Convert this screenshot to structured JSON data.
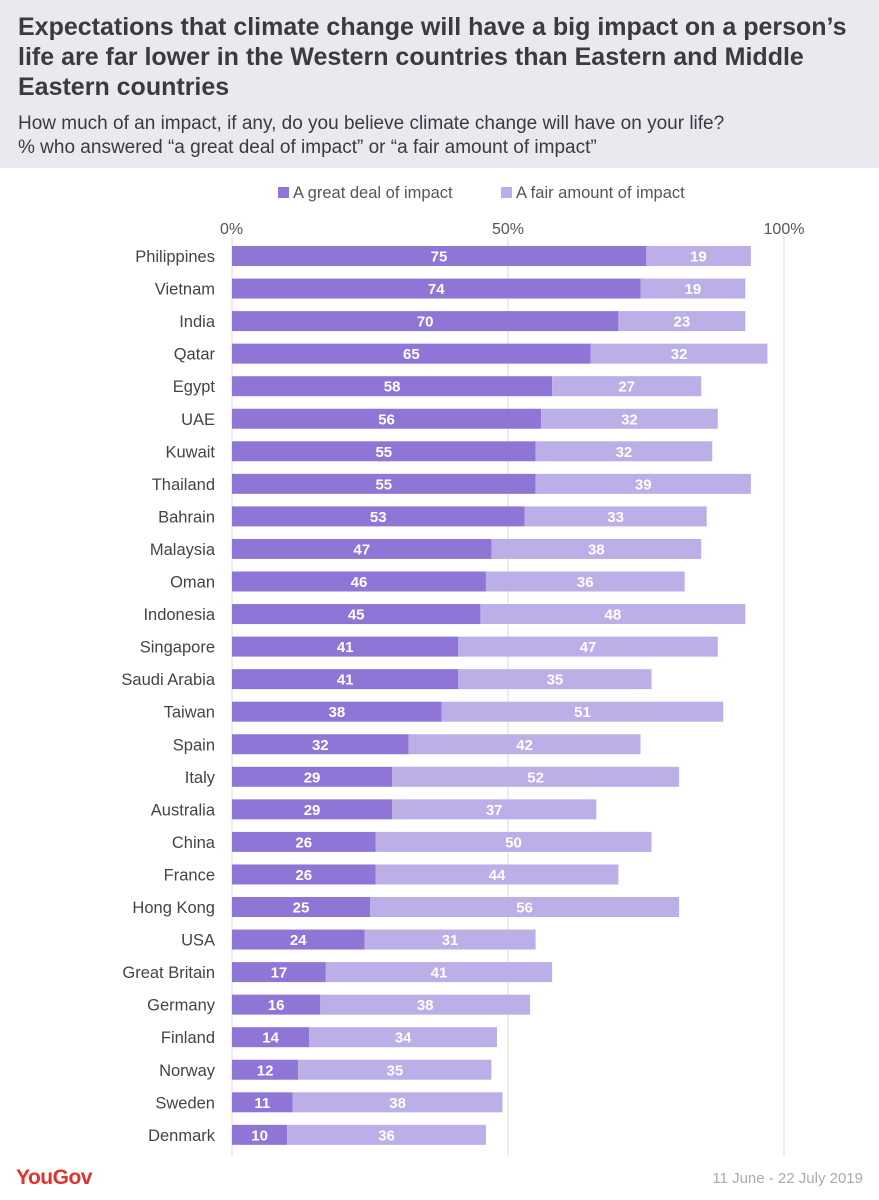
{
  "title": "Expectations that climate change will have a big impact on a person’s life are far lower in the Western countries than Eastern and Middle Eastern countries",
  "subtitle_line1": "How much of an impact, if any, do you believe climate change will have on your life?",
  "subtitle_line2": "% who answered “a great deal of impact” or “a fair amount of impact”",
  "footer": {
    "brand": "YouGov",
    "date": "11 June - 22 July 2019"
  },
  "colors": {
    "great_deal": "#8f76d6",
    "fair_amount": "#bcaee6",
    "grid": "#d9d9d9",
    "header_bg": "#ebe8f0"
  },
  "chart_data": {
    "type": "bar",
    "orientation": "horizontal",
    "stacked": true,
    "xlim": [
      0,
      100
    ],
    "x_ticks": [
      "0%",
      "50%",
      "100%"
    ],
    "x_tick_values": [
      0,
      50,
      100
    ],
    "legend": [
      "A great deal of impact",
      "A fair amount of impact"
    ],
    "legend_position": "top",
    "categories": [
      "Philippines",
      "Vietnam",
      "India",
      "Qatar",
      "Egypt",
      "UAE",
      "Kuwait",
      "Thailand",
      "Bahrain",
      "Malaysia",
      "Oman",
      "Indonesia",
      "Singapore",
      "Saudi Arabia",
      "Taiwan",
      "Spain",
      "Italy",
      "Australia",
      "China",
      "France",
      "Hong Kong",
      "USA",
      "Great Britain",
      "Germany",
      "Finland",
      "Norway",
      "Sweden",
      "Denmark"
    ],
    "series": [
      {
        "name": "A great deal of impact",
        "values": [
          75,
          74,
          70,
          65,
          58,
          56,
          55,
          55,
          53,
          47,
          46,
          45,
          41,
          41,
          38,
          32,
          29,
          29,
          26,
          26,
          25,
          24,
          17,
          16,
          14,
          12,
          11,
          10
        ]
      },
      {
        "name": "A fair amount of impact",
        "values": [
          19,
          19,
          23,
          32,
          27,
          32,
          32,
          39,
          33,
          38,
          36,
          48,
          47,
          35,
          51,
          42,
          52,
          37,
          50,
          44,
          56,
          31,
          41,
          38,
          34,
          35,
          38,
          36
        ]
      }
    ]
  }
}
